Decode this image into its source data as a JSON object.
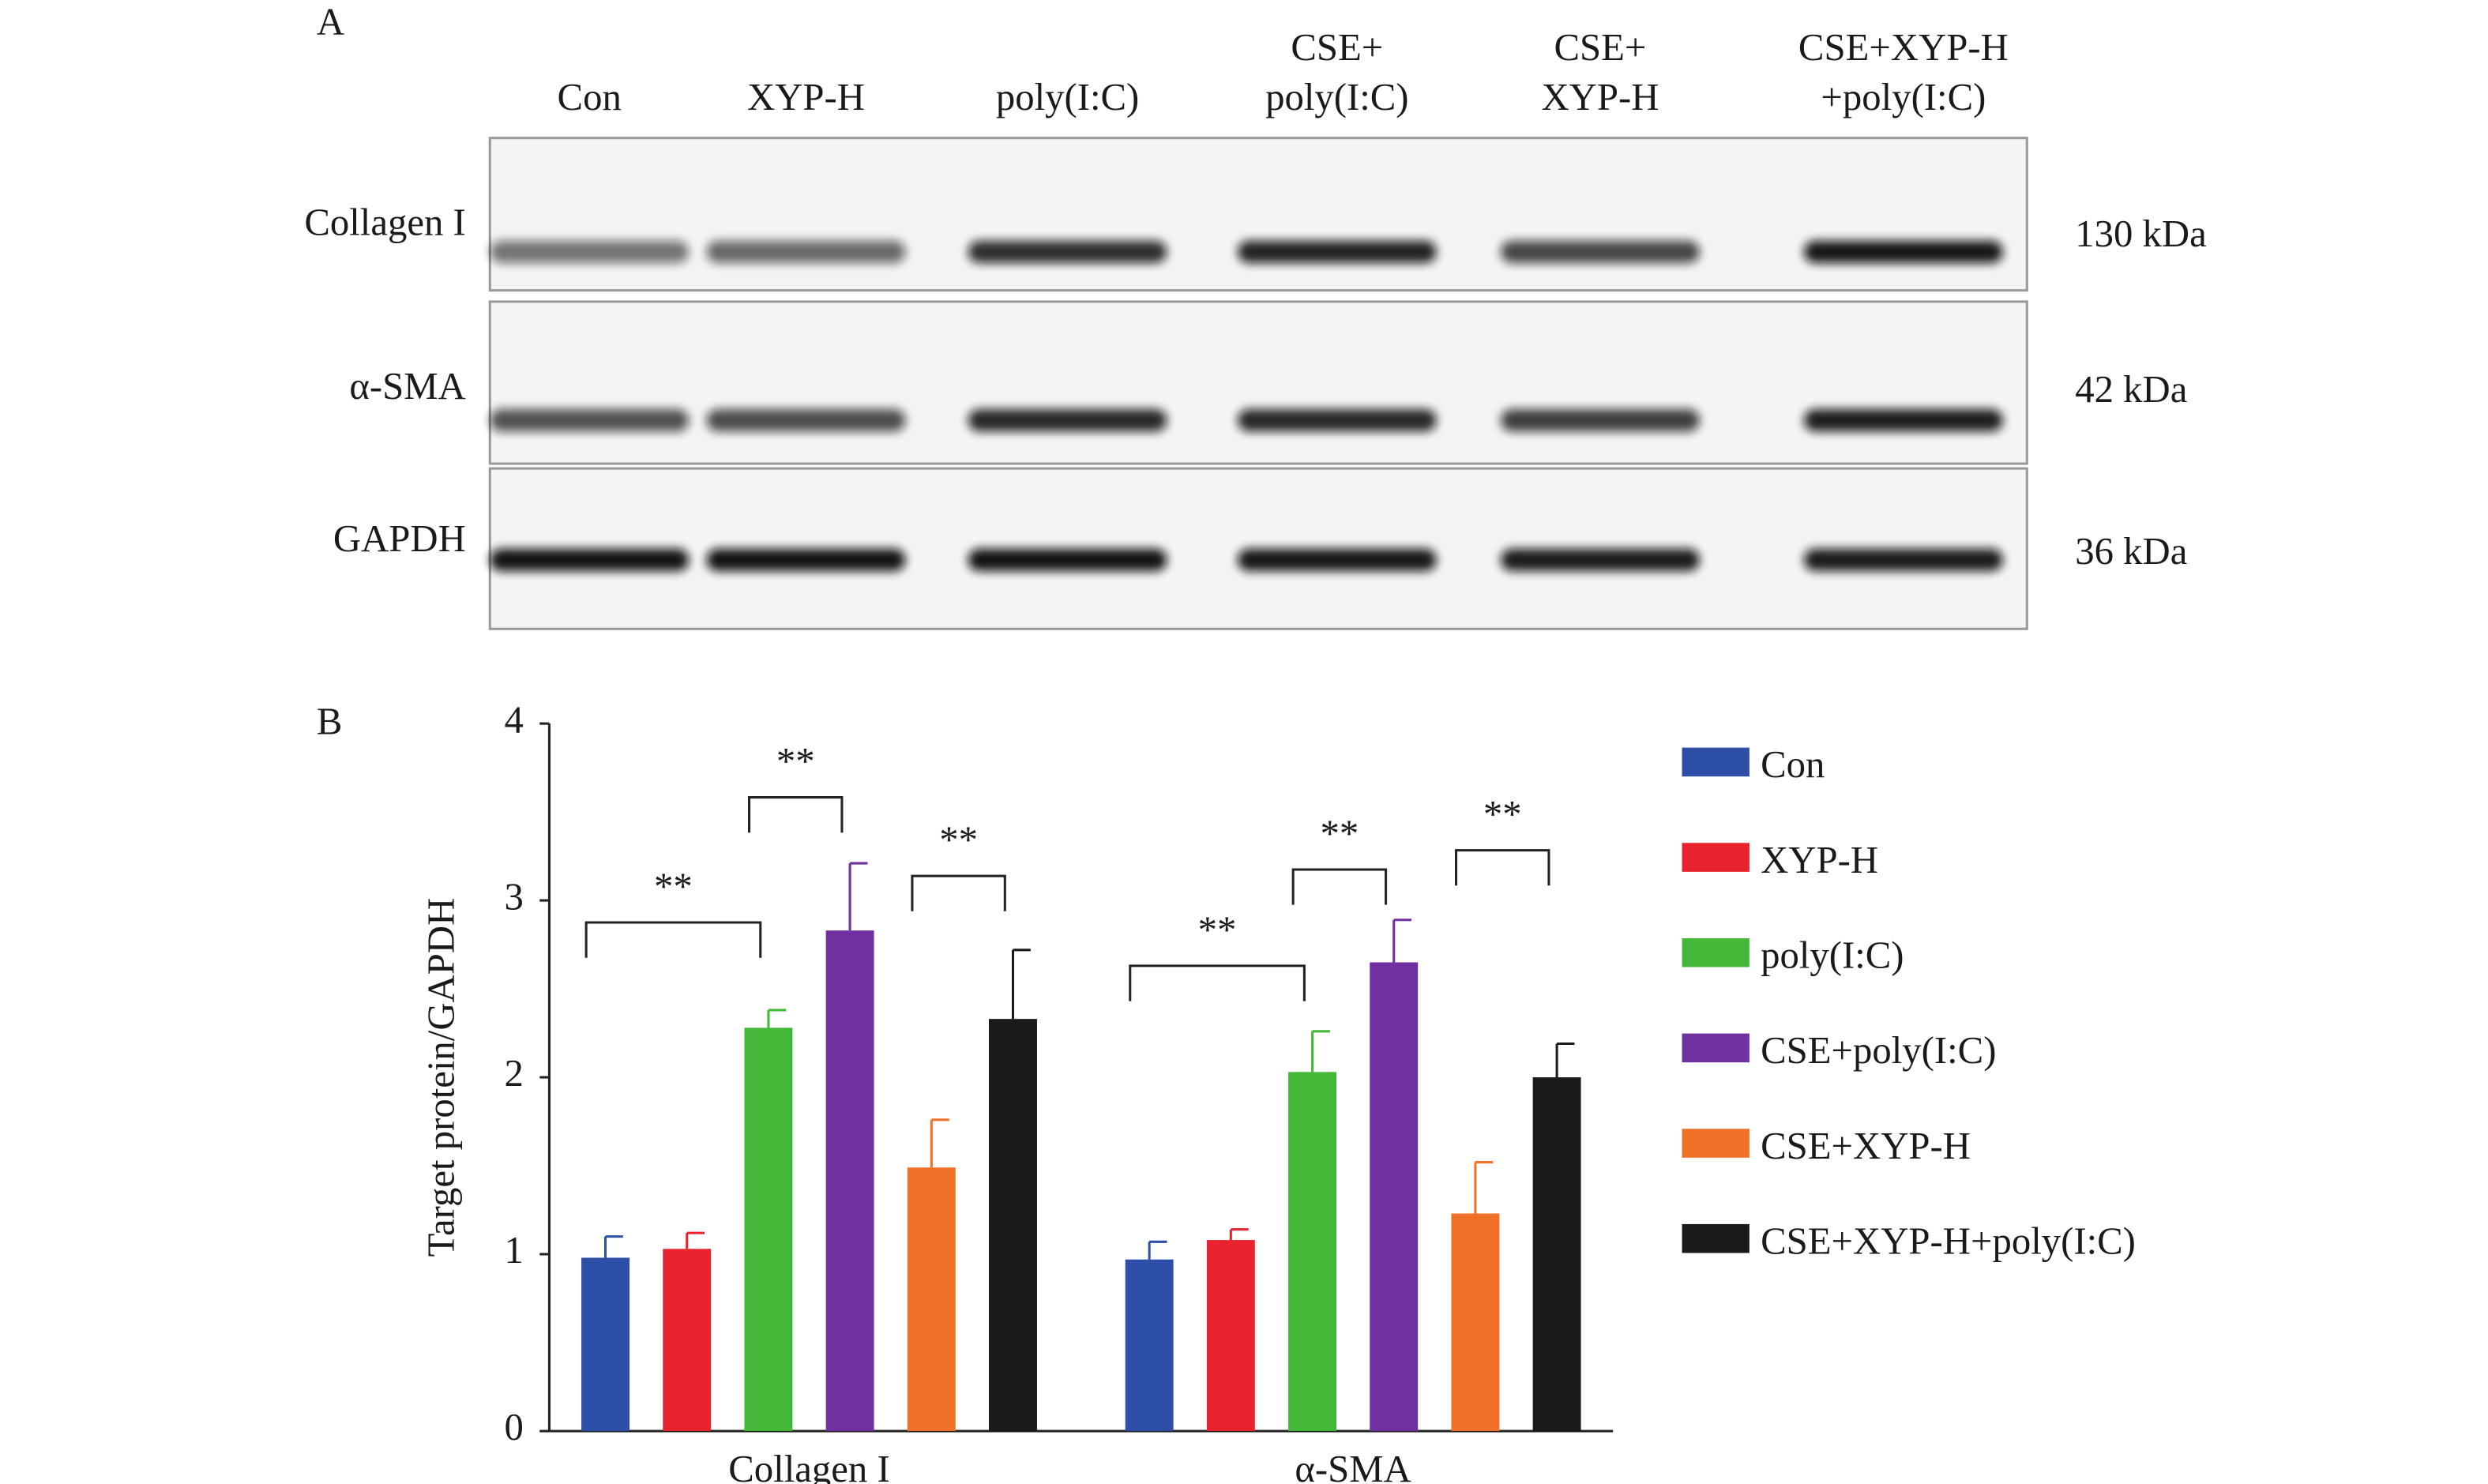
{
  "panel_a": {
    "label": "A",
    "lanes": [
      [
        "Con"
      ],
      [
        "XYP-H"
      ],
      [
        "poly(I:C)"
      ],
      [
        "CSE+",
        "poly(I:C)"
      ],
      [
        "CSE+",
        "XYP-H"
      ],
      [
        "CSE+XYP-H",
        "+poly(I:C)"
      ]
    ],
    "rows": [
      {
        "name": "Collagen I",
        "size": "130 kDa"
      },
      {
        "name": "α-SMA",
        "size": "42 kDa"
      },
      {
        "name": "GAPDH",
        "size": "36 kDa"
      }
    ]
  },
  "chart_data": {
    "type": "bar",
    "panel_label": "B",
    "categories": [
      "Collagen I",
      "α-SMA"
    ],
    "ylabel": "Target protein/GAPDH",
    "ylim": [
      0,
      4
    ],
    "yticks": [
      0,
      1,
      2,
      3,
      4
    ],
    "series": [
      {
        "name": "Con",
        "color": "#2e4fa8",
        "values": [
          0.98,
          0.97
        ],
        "errors": [
          0.12,
          0.1
        ]
      },
      {
        "name": "XYP-H",
        "color": "#e8232e",
        "values": [
          1.03,
          1.08
        ],
        "errors": [
          0.09,
          0.06
        ]
      },
      {
        "name": "poly(I:C)",
        "color": "#45b83a",
        "values": [
          2.28,
          2.03
        ],
        "errors": [
          0.1,
          0.23
        ]
      },
      {
        "name": "CSE+poly(I:C)",
        "color": "#7030a0",
        "values": [
          2.83,
          2.65
        ],
        "errors": [
          0.38,
          0.24
        ]
      },
      {
        "name": "CSE+XYP-H",
        "color": "#f07028",
        "values": [
          1.49,
          1.23
        ],
        "errors": [
          0.27,
          0.29
        ]
      },
      {
        "name": "CSE+XYP-H+poly(I:C)",
        "color": "#1a1a1a",
        "values": [
          2.33,
          2.0
        ],
        "errors": [
          0.39,
          0.19
        ]
      }
    ],
    "annotations": [
      "**",
      "**",
      "**",
      "**",
      "**",
      "**"
    ]
  }
}
